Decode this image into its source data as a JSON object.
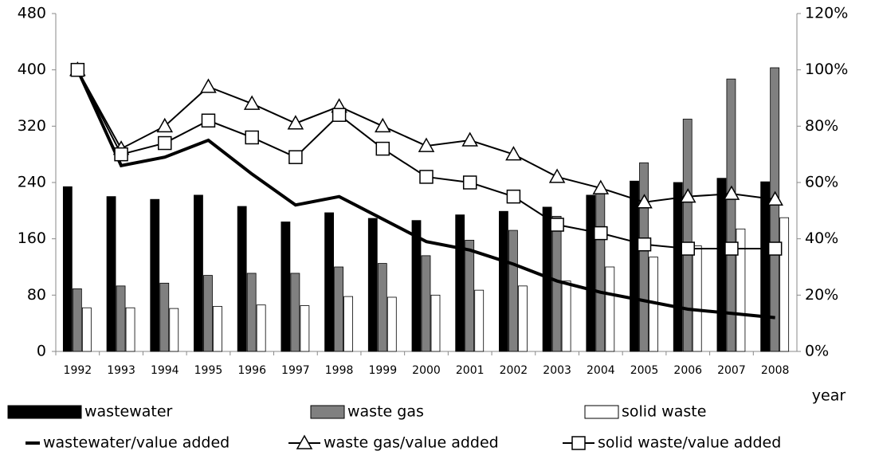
{
  "chart_data": {
    "type": "bar-line",
    "x_label": "year",
    "categories": [
      "1992",
      "1993",
      "1994",
      "1995",
      "1996",
      "1997",
      "1998",
      "1999",
      "2000",
      "2001",
      "2002",
      "2003",
      "2004",
      "2005",
      "2006",
      "2007",
      "2008"
    ],
    "ylim": [
      0,
      480
    ],
    "yticks": [
      0,
      80,
      160,
      240,
      320,
      400,
      480
    ],
    "y2lim": [
      0,
      120
    ],
    "y2ticks": [
      {
        "value": 0,
        "label": "0%"
      },
      {
        "value": 20,
        "label": "20%"
      },
      {
        "value": 40,
        "label": "40%"
      },
      {
        "value": 60,
        "label": "60%"
      },
      {
        "value": 80,
        "label": "80%"
      },
      {
        "value": 100,
        "label": "100%"
      },
      {
        "value": 120,
        "label": "120%"
      }
    ],
    "grid": false,
    "series": [
      {
        "name": "wastewater",
        "type": "bar",
        "color": "#000000",
        "values": [
          234,
          220,
          216,
          222,
          206,
          184,
          197,
          189,
          186,
          194,
          199,
          205,
          222,
          242,
          240,
          246,
          241
        ]
      },
      {
        "name": "waste gas",
        "type": "bar",
        "color": "#808080",
        "values": [
          89,
          93,
          97,
          108,
          111,
          111,
          120,
          125,
          136,
          158,
          172,
          192,
          230,
          268,
          330,
          387,
          403
        ]
      },
      {
        "name": "solid waste",
        "type": "bar",
        "color": "#ffffff",
        "values": [
          62,
          62,
          61,
          64,
          66,
          65,
          78,
          77,
          80,
          87,
          93,
          100,
          120,
          134,
          150,
          174,
          190
        ]
      },
      {
        "name": "wastewater/value added",
        "type": "line",
        "axis": "y2",
        "color": "#000000",
        "marker": "none",
        "values": [
          100,
          66,
          69,
          75,
          63,
          52,
          55,
          47,
          39,
          36,
          31,
          25,
          21,
          18,
          15,
          13.5,
          12
        ]
      },
      {
        "name": "waste gas/value added",
        "type": "line",
        "axis": "y2",
        "color": "#000000",
        "marker": "triangle",
        "values": [
          100,
          72,
          80,
          94,
          88,
          81,
          87,
          80,
          73,
          75,
          70,
          62,
          58,
          53,
          55,
          56,
          54
        ]
      },
      {
        "name": "solid waste/value added",
        "type": "line",
        "axis": "y2",
        "color": "#000000",
        "marker": "square",
        "values": [
          100,
          70,
          74,
          82,
          76,
          69,
          84,
          72,
          62,
          60,
          55,
          45,
          42,
          38,
          36.5,
          36.5,
          36.5
        ]
      }
    ]
  }
}
